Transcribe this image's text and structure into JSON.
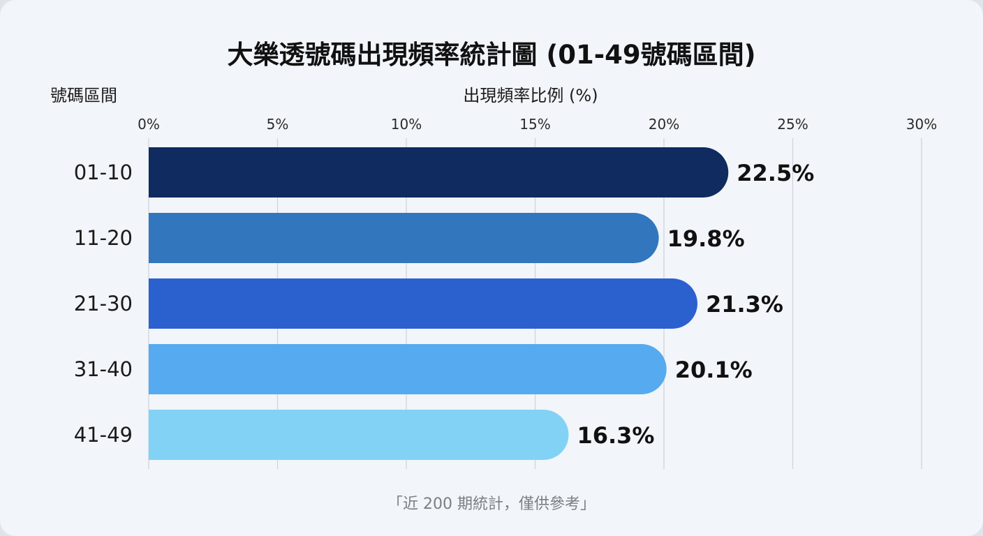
{
  "chart_data": {
    "type": "bar",
    "orientation": "horizontal",
    "title": "大樂透號碼出現頻率統計圖 (01-49號碼區間)",
    "xlabel": "出現頻率比例 (%)",
    "ylabel": "號碼區間",
    "categories": [
      "01-10",
      "11-20",
      "21-30",
      "31-40",
      "41-49"
    ],
    "values": [
      22.5,
      19.8,
      21.3,
      20.1,
      16.3
    ],
    "value_labels": [
      "22.5%",
      "19.8%",
      "21.3%",
      "20.1%",
      "16.3%"
    ],
    "xlim": [
      0,
      30
    ],
    "ticks": [
      0,
      5,
      10,
      15,
      20,
      25,
      30
    ],
    "tick_labels": [
      "0%",
      "5%",
      "10%",
      "15%",
      "20%",
      "25%",
      "30%"
    ],
    "tick_position": "top",
    "grid": true,
    "colors": [
      "#0f2b5f",
      "#3277bd",
      "#2b60cf",
      "#56aaef",
      "#82d2f6"
    ],
    "footnote": "「近 200 期統計，僅供參考」"
  }
}
